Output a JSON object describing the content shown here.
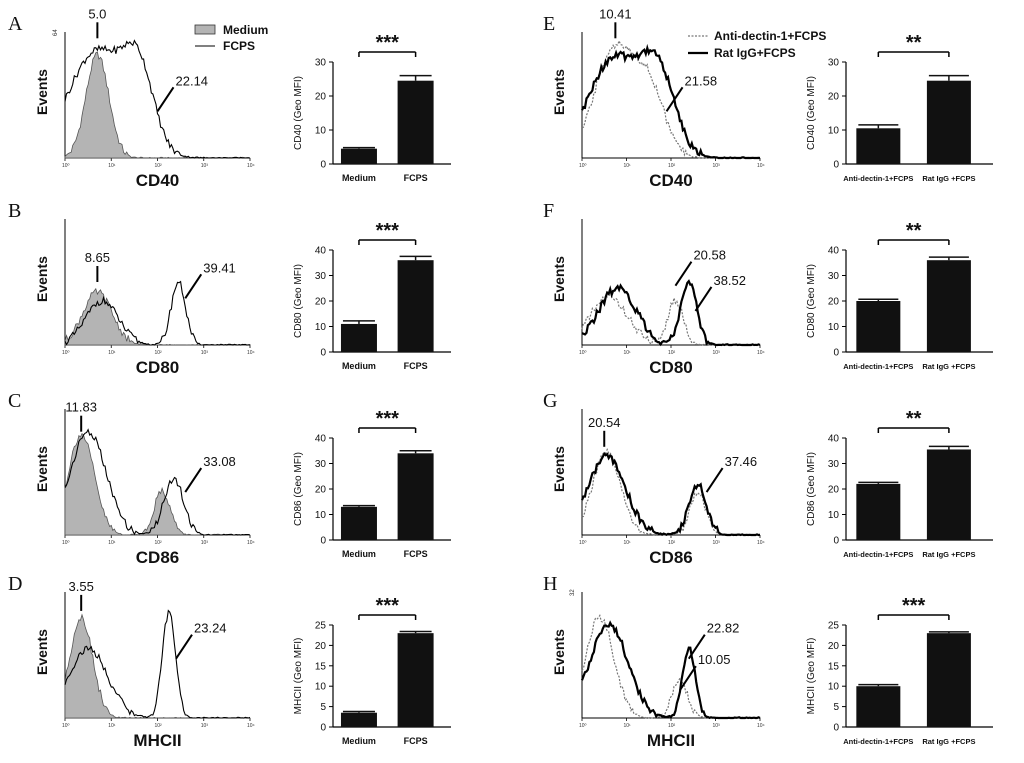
{
  "chart_data": [
    {
      "panel": "A",
      "type": "histogram",
      "marker": "CD40",
      "ymax": "64",
      "ylabel": "Events",
      "legend": [
        "Medium",
        "FCPS"
      ],
      "series": [
        {
          "name": "Medium",
          "style": "filled-gray",
          "peak_log": 0.7,
          "width": 0.35,
          "height": 0.82,
          "second_log": 0,
          "second_width": 0,
          "second_height": 0
        },
        {
          "name": "FCPS",
          "style": "line",
          "peak_log": 0.7,
          "width": 0.9,
          "height": 0.85,
          "second_log": 1.6,
          "second_width": 0.45,
          "second_height": 0.55
        }
      ],
      "annotations": [
        {
          "text": "5.0",
          "log": 0.7,
          "level": 0.95
        },
        {
          "text": "22.14",
          "log": 2.0,
          "level": 0.45
        }
      ]
    },
    {
      "panel": "B",
      "type": "histogram",
      "marker": "CD80",
      "ymax": "",
      "ylabel": "Events",
      "series": [
        {
          "name": "Medium",
          "style": "filled-gray",
          "peak_log": 0.7,
          "width": 0.45,
          "height": 0.42,
          "second_log": 0,
          "second_width": 0,
          "second_height": 0
        },
        {
          "name": "FCPS",
          "style": "line",
          "peak_log": 0.8,
          "width": 0.5,
          "height": 0.35,
          "second_log": 2.45,
          "second_width": 0.22,
          "second_height": 0.5
        }
      ],
      "annotations": [
        {
          "text": "8.65",
          "log": 0.7,
          "level": 0.5
        },
        {
          "text": "39.41",
          "log": 2.6,
          "level": 0.45
        }
      ]
    },
    {
      "panel": "C",
      "type": "histogram",
      "marker": "CD86",
      "ymax": "",
      "ylabel": "Events",
      "series": [
        {
          "name": "Medium",
          "style": "filled-gray",
          "peak_log": 0.35,
          "width": 0.4,
          "height": 0.8,
          "second_log": 2.1,
          "second_width": 0.25,
          "second_height": 0.35
        },
        {
          "name": "FCPS",
          "style": "line",
          "peak_log": 0.5,
          "width": 0.55,
          "height": 0.82,
          "second_log": 2.35,
          "second_width": 0.3,
          "second_height": 0.45
        }
      ],
      "annotations": [
        {
          "text": "11.83",
          "log": 0.35,
          "level": 0.82
        },
        {
          "text": "33.08",
          "log": 2.6,
          "level": 0.42
        }
      ]
    },
    {
      "panel": "D",
      "type": "histogram",
      "marker": "MHCII",
      "ymax": "",
      "ylabel": "Events",
      "series": [
        {
          "name": "Medium",
          "style": "filled-gray",
          "peak_log": 0.35,
          "width": 0.35,
          "height": 0.8,
          "second_log": 0,
          "second_width": 0,
          "second_height": 0
        },
        {
          "name": "FCPS",
          "style": "line",
          "peak_log": 0.5,
          "width": 0.6,
          "height": 0.55,
          "second_log": 2.25,
          "second_width": 0.2,
          "second_height": 0.85
        }
      ],
      "annotations": [
        {
          "text": "3.55",
          "log": 0.35,
          "level": 0.85
        },
        {
          "text": "23.24",
          "log": 2.4,
          "level": 0.55
        }
      ]
    },
    {
      "panel": "E",
      "type": "histogram",
      "marker": "CD40",
      "ymax": "",
      "ylabel": "Events",
      "legend": [
        "Anti-dectin-1+FCPS",
        "Rat IgG+FCPS"
      ],
      "series": [
        {
          "name": "Anti-dectin-1+FCPS",
          "style": "dotted",
          "peak_log": 0.7,
          "width": 0.6,
          "height": 0.85,
          "second_log": 1.5,
          "second_width": 0.5,
          "second_height": 0.55
        },
        {
          "name": "Rat IgG+FCPS",
          "style": "bold",
          "peak_log": 0.7,
          "width": 0.8,
          "height": 0.78,
          "second_log": 1.7,
          "second_width": 0.55,
          "second_height": 0.65
        }
      ],
      "annotations": [
        {
          "text": "10.41",
          "log": 0.75,
          "level": 0.95
        },
        {
          "text": "21.58",
          "log": 1.9,
          "level": 0.45
        }
      ]
    },
    {
      "panel": "F",
      "type": "histogram",
      "marker": "CD80",
      "ymax": "",
      "ylabel": "Events",
      "series": [
        {
          "name": "Anti-dectin-1+FCPS",
          "style": "dotted",
          "peak_log": 0.6,
          "width": 0.6,
          "height": 0.38,
          "second_log": 2.1,
          "second_width": 0.25,
          "second_height": 0.35
        },
        {
          "name": "Rat IgG+FCPS",
          "style": "bold",
          "peak_log": 0.8,
          "width": 0.6,
          "height": 0.45,
          "second_log": 2.4,
          "second_width": 0.25,
          "second_height": 0.5
        }
      ],
      "annotations": [
        {
          "text": "20.58",
          "log": 2.1,
          "level": 0.55
        },
        {
          "text": "38.52",
          "log": 2.55,
          "level": 0.35
        }
      ]
    },
    {
      "panel": "G",
      "type": "histogram",
      "marker": "CD86",
      "ymax": "",
      "ylabel": "Events",
      "series": [
        {
          "name": "Anti-dectin-1+FCPS",
          "style": "dotted",
          "peak_log": 0.55,
          "width": 0.45,
          "height": 0.65,
          "second_log": 2.6,
          "second_width": 0.25,
          "second_height": 0.35
        },
        {
          "name": "Rat IgG+FCPS",
          "style": "bold",
          "peak_log": 0.55,
          "width": 0.6,
          "height": 0.62,
          "second_log": 2.6,
          "second_width": 0.28,
          "second_height": 0.4
        }
      ],
      "annotations": [
        {
          "text": "20.54",
          "log": 0.5,
          "level": 0.7
        },
        {
          "text": "37.46",
          "log": 2.8,
          "level": 0.42
        }
      ]
    },
    {
      "panel": "H",
      "type": "histogram",
      "marker": "MHCII",
      "ymax": "32",
      "ylabel": "Events",
      "series": [
        {
          "name": "Anti-dectin-1+FCPS",
          "style": "dotted",
          "peak_log": 0.4,
          "width": 0.45,
          "height": 0.8,
          "second_log": 2.2,
          "second_width": 0.25,
          "second_height": 0.3
        },
        {
          "name": "Rat IgG+FCPS",
          "style": "bold",
          "peak_log": 0.6,
          "width": 0.6,
          "height": 0.75,
          "second_log": 2.4,
          "second_width": 0.2,
          "second_height": 0.55
        }
      ],
      "annotations": [
        {
          "text": "22.82",
          "log": 2.4,
          "level": 0.55
        },
        {
          "text": "10.05",
          "log": 2.2,
          "level": 0.3
        }
      ]
    },
    {
      "panel": "A-bar",
      "type": "bar",
      "ylabel": "CD40 (Geo MFI)",
      "categories": [
        "Medium",
        "FCPS"
      ],
      "values": [
        4.5,
        24.5
      ],
      "errors": [
        0.3,
        1.5
      ],
      "ylim": [
        0,
        30
      ],
      "yticks": [
        0,
        10,
        20,
        30
      ],
      "significance": "***"
    },
    {
      "panel": "B-bar",
      "type": "bar",
      "ylabel": "CD80 (Geo MFI)",
      "categories": [
        "Medium",
        "FCPS"
      ],
      "values": [
        11,
        36
      ],
      "errors": [
        1.2,
        1.5
      ],
      "ylim": [
        0,
        40
      ],
      "yticks": [
        0,
        10,
        20,
        30,
        40
      ],
      "significance": "***"
    },
    {
      "panel": "C-bar",
      "type": "bar",
      "ylabel": "CD86 (Geo MFI)",
      "categories": [
        "Medium",
        "FCPS"
      ],
      "values": [
        13,
        34
      ],
      "errors": [
        0.5,
        1
      ],
      "ylim": [
        0,
        40
      ],
      "yticks": [
        0,
        10,
        20,
        30,
        40
      ],
      "significance": "***"
    },
    {
      "panel": "D-bar",
      "type": "bar",
      "ylabel": "MHCII (Geo MFI)",
      "categories": [
        "Medium",
        "FCPS"
      ],
      "values": [
        3.5,
        23
      ],
      "errors": [
        0.3,
        0.4
      ],
      "ylim": [
        0,
        25
      ],
      "yticks": [
        0,
        5,
        10,
        15,
        20,
        25
      ],
      "significance": "***"
    },
    {
      "panel": "E-bar",
      "type": "bar",
      "ylabel": "CD40 (Geo MFI)",
      "categories": [
        "Anti-dectin-1+FCPS",
        "Rat IgG +FCPS"
      ],
      "values": [
        10.5,
        24.5
      ],
      "errors": [
        1,
        1.5
      ],
      "ylim": [
        0,
        30
      ],
      "yticks": [
        0,
        10,
        20,
        30
      ],
      "significance": "**"
    },
    {
      "panel": "F-bar",
      "type": "bar",
      "ylabel": "CD80 (Geo MFI)",
      "categories": [
        "Anti-dectin-1+FCPS",
        "Rat IgG +FCPS"
      ],
      "values": [
        20,
        36
      ],
      "errors": [
        0.7,
        1.2
      ],
      "ylim": [
        0,
        40
      ],
      "yticks": [
        0,
        10,
        20,
        30,
        40
      ],
      "significance": "**"
    },
    {
      "panel": "G-bar",
      "type": "bar",
      "ylabel": "CD86 (Geo MFI)",
      "categories": [
        "Anti-dectin-1+FCPS",
        "Rat IgG +FCPS"
      ],
      "values": [
        22,
        35.5
      ],
      "errors": [
        0.6,
        1.2
      ],
      "ylim": [
        0,
        40
      ],
      "yticks": [
        0,
        10,
        20,
        30,
        40
      ],
      "significance": "**"
    },
    {
      "panel": "H-bar",
      "type": "bar",
      "ylabel": "MHCII (Geo MFI)",
      "categories": [
        "Anti-dectin-1+FCPS",
        "Rat IgG +FCPS"
      ],
      "values": [
        10,
        23
      ],
      "errors": [
        0.4,
        0.3
      ],
      "ylim": [
        0,
        25
      ],
      "yticks": [
        0,
        5,
        10,
        15,
        20,
        25
      ],
      "significance": "***"
    }
  ],
  "x_ticks": [
    "10⁰",
    "10¹",
    "10²",
    "10³",
    "10⁴"
  ],
  "colors": {
    "fill": "#b4b4b4",
    "line": "#000000",
    "dotted": "#777777",
    "bar": "#111111"
  }
}
